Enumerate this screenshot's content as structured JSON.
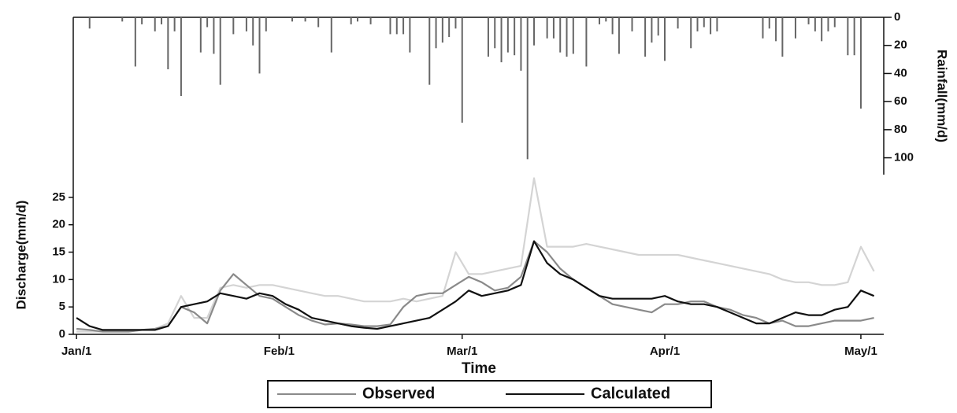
{
  "chart_data": {
    "type": "line",
    "xlabel": "Time",
    "ylabel": "Discharge(mm/d)",
    "y2label": "Rainfall(mm/d)",
    "xlim": [
      -0.5,
      123.5
    ],
    "xticks": [
      {
        "value": 0,
        "label": "Jan/1"
      },
      {
        "value": 31,
        "label": "Feb/1"
      },
      {
        "value": 59,
        "label": "Mar/1"
      },
      {
        "value": 90,
        "label": "Apr/1"
      },
      {
        "value": 120,
        "label": "May/1"
      }
    ],
    "ylim": [
      0,
      29
    ],
    "yticks": [
      0,
      5,
      10,
      15,
      20,
      25
    ],
    "y2lim": [
      0,
      112
    ],
    "y2ticks": [
      0,
      20,
      40,
      60,
      80,
      100
    ],
    "y2_inverted": true,
    "x": [
      0,
      2,
      4,
      6,
      8,
      10,
      12,
      14,
      16,
      18,
      20,
      22,
      24,
      26,
      28,
      30,
      32,
      34,
      36,
      38,
      40,
      42,
      44,
      46,
      48,
      50,
      52,
      54,
      56,
      58,
      60,
      62,
      64,
      66,
      68,
      70,
      72,
      74,
      76,
      78,
      80,
      82,
      84,
      86,
      88,
      90,
      92,
      94,
      96,
      98,
      100,
      102,
      104,
      106,
      108,
      110,
      112,
      114,
      116,
      118,
      120,
      122
    ],
    "series": [
      {
        "color": "#d4d4d4",
        "values": [
          0.5,
          0.5,
          0.5,
          0.5,
          0.5,
          0.8,
          1,
          2,
          7,
          3,
          3,
          8.5,
          9,
          8.5,
          9,
          9,
          8.5,
          8,
          7.5,
          7,
          7,
          6.5,
          6,
          6,
          6,
          6.5,
          6,
          6.5,
          7,
          15,
          11,
          11,
          11.5,
          12,
          12.5,
          28.5,
          16,
          16,
          16,
          16.5,
          16,
          15.5,
          15,
          14.5,
          14.5,
          14.5,
          14.5,
          14,
          13.5,
          13,
          12.5,
          12,
          11.5,
          11,
          10,
          9.5,
          9.5,
          9,
          9,
          9.5,
          16,
          11.5
        ]
      },
      {
        "name": "Observed",
        "color": "#8a8a8a",
        "values": [
          1,
          0.8,
          0.5,
          0.5,
          0.5,
          0.8,
          1,
          1.5,
          5,
          4,
          2,
          8,
          11,
          9,
          7,
          6.5,
          5,
          3.5,
          2.5,
          1.8,
          2,
          1.8,
          1.5,
          1.5,
          1.8,
          5,
          7,
          7.5,
          7.5,
          9,
          10.5,
          9.5,
          8,
          8.5,
          10.5,
          17,
          15,
          12,
          10,
          8.5,
          7,
          5.5,
          5,
          4.5,
          4,
          5.5,
          5.5,
          6,
          6,
          5,
          4.5,
          3.5,
          3,
          2,
          2.5,
          1.5,
          1.5,
          2,
          2.5,
          2.5,
          2.5,
          3
        ]
      },
      {
        "name": "Calculated",
        "color": "#111111",
        "values": [
          3,
          1.5,
          0.8,
          0.8,
          0.8,
          0.8,
          0.8,
          1.5,
          5,
          5.5,
          6,
          7.5,
          7,
          6.5,
          7.5,
          7,
          5.5,
          4.5,
          3,
          2.5,
          2,
          1.5,
          1.2,
          1,
          1.5,
          2,
          2.5,
          3,
          4.5,
          6,
          8,
          7,
          7.5,
          8,
          9,
          17,
          13,
          11,
          10,
          8.5,
          7,
          6.5,
          6.5,
          6.5,
          6.5,
          7,
          6,
          5.5,
          5.5,
          5,
          4,
          3,
          2,
          2,
          3,
          4,
          3.5,
          3.5,
          4.5,
          5,
          8,
          7
        ]
      },
      {
        "type": "bar",
        "axis": "y2",
        "color": "#666666",
        "x": [
          2,
          7,
          9,
          10,
          12,
          13,
          14,
          15,
          16,
          19,
          20,
          21,
          22,
          24,
          26,
          27,
          28,
          29,
          33,
          35,
          37,
          39,
          42,
          43,
          45,
          48,
          49,
          50,
          51,
          54,
          55,
          56,
          57,
          58,
          59,
          63,
          64,
          65,
          66,
          67,
          68,
          69,
          70,
          72,
          73,
          74,
          75,
          76,
          78,
          80,
          81,
          82,
          83,
          85,
          87,
          88,
          89,
          90,
          92,
          94,
          95,
          96,
          97,
          98,
          105,
          106,
          107,
          108,
          110,
          112,
          113,
          114,
          115,
          116,
          118,
          119,
          120
        ],
        "values": [
          8,
          3,
          35,
          5,
          10,
          5,
          37,
          10,
          56,
          25,
          7,
          26,
          48,
          12,
          10,
          20,
          40,
          10,
          3,
          3,
          7,
          25,
          5,
          3,
          5,
          12,
          12,
          12,
          25,
          48,
          22,
          18,
          14,
          8,
          75,
          28,
          22,
          32,
          25,
          27,
          38,
          101,
          20,
          15,
          15,
          25,
          28,
          26,
          35,
          5,
          3,
          12,
          26,
          10,
          28,
          18,
          13,
          31,
          8,
          22,
          10,
          7,
          12,
          10,
          15,
          8,
          17,
          28,
          15,
          5,
          10,
          17,
          10,
          7,
          27,
          27,
          65
        ]
      }
    ],
    "legend": "bottom"
  }
}
